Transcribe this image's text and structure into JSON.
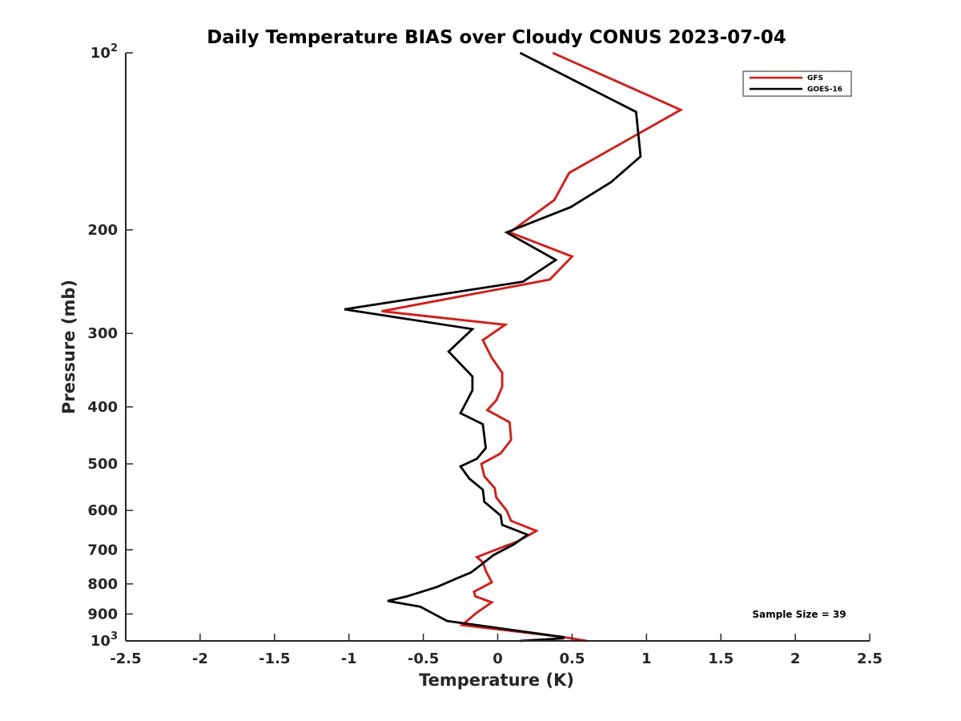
{
  "chart_data": {
    "type": "line",
    "title": "Daily Temperature BIAS over Cloudy CONUS 2023-07-04",
    "xlabel": "Temperature (K)",
    "ylabel": "Pressure (mb)",
    "xlim": [
      -2.5,
      2.5
    ],
    "ylim": [
      100,
      1000
    ],
    "yscale": "log",
    "yreversed": true,
    "x_ticks": [
      "-2.5",
      "-2",
      "-1.5",
      "-1",
      "-0.5",
      "0",
      "0.5",
      "1",
      "1.5",
      "2",
      "2.5"
    ],
    "y_ticks": [
      {
        "value": 100,
        "base": "10",
        "exp": "2"
      },
      {
        "value": 200,
        "label": "200"
      },
      {
        "value": 300,
        "label": "300"
      },
      {
        "value": 400,
        "label": "400"
      },
      {
        "value": 500,
        "label": "500"
      },
      {
        "value": 600,
        "label": "600"
      },
      {
        "value": 700,
        "label": "700"
      },
      {
        "value": 800,
        "label": "800"
      },
      {
        "value": 900,
        "label": "900"
      },
      {
        "value": 1000,
        "base": "10",
        "exp": "3"
      }
    ],
    "grid": false,
    "legend_position": "top-right",
    "annotation": "Sample Size = 39",
    "series": [
      {
        "name": "GFS",
        "color": "#e8120c",
        "points": [
          [
            0.37,
            100
          ],
          [
            1.23,
            125
          ],
          [
            0.48,
            160
          ],
          [
            0.38,
            178
          ],
          [
            0.08,
            202
          ],
          [
            0.5,
            222
          ],
          [
            0.35,
            243
          ],
          [
            -0.78,
            275
          ],
          [
            0.05,
            290
          ],
          [
            -0.1,
            308
          ],
          [
            -0.04,
            330
          ],
          [
            0.03,
            350
          ],
          [
            0.03,
            370
          ],
          [
            -0.01,
            390
          ],
          [
            -0.07,
            405
          ],
          [
            0.08,
            425
          ],
          [
            0.09,
            455
          ],
          [
            0.02,
            480
          ],
          [
            -0.11,
            500
          ],
          [
            -0.09,
            525
          ],
          [
            -0.02,
            550
          ],
          [
            -0.01,
            570
          ],
          [
            0.06,
            600
          ],
          [
            0.09,
            625
          ],
          [
            0.26,
            650
          ],
          [
            0.13,
            678
          ],
          [
            -0.14,
            720
          ],
          [
            -0.1,
            735
          ],
          [
            -0.08,
            760
          ],
          [
            -0.04,
            795
          ],
          [
            -0.16,
            825
          ],
          [
            -0.15,
            840
          ],
          [
            -0.04,
            860
          ],
          [
            -0.14,
            895
          ],
          [
            -0.24,
            940
          ],
          [
            0.44,
            985
          ],
          [
            0.6,
            1000
          ]
        ]
      },
      {
        "name": "GOES-16",
        "color": "#000000",
        "points": [
          [
            0.15,
            100
          ],
          [
            0.93,
            126
          ],
          [
            0.96,
            150
          ],
          [
            0.76,
            166
          ],
          [
            0.49,
            183
          ],
          [
            0.06,
            202
          ],
          [
            0.39,
            225
          ],
          [
            0.17,
            245
          ],
          [
            -1.03,
            273
          ],
          [
            -0.17,
            295
          ],
          [
            -0.33,
            322
          ],
          [
            -0.17,
            355
          ],
          [
            -0.17,
            375
          ],
          [
            -0.25,
            410
          ],
          [
            -0.1,
            428
          ],
          [
            -0.08,
            470
          ],
          [
            -0.14,
            490
          ],
          [
            -0.25,
            505
          ],
          [
            -0.19,
            530
          ],
          [
            -0.1,
            553
          ],
          [
            -0.09,
            580
          ],
          [
            0.02,
            612
          ],
          [
            0.03,
            635
          ],
          [
            0.2,
            660
          ],
          [
            0.11,
            685
          ],
          [
            -0.03,
            715
          ],
          [
            -0.12,
            745
          ],
          [
            -0.18,
            765
          ],
          [
            -0.26,
            780
          ],
          [
            -0.41,
            810
          ],
          [
            -0.61,
            840
          ],
          [
            -0.74,
            855
          ],
          [
            -0.52,
            875
          ],
          [
            -0.34,
            925
          ],
          [
            0.44,
            985
          ],
          [
            0.44,
            990
          ],
          [
            0.15,
            1000
          ]
        ]
      }
    ]
  }
}
